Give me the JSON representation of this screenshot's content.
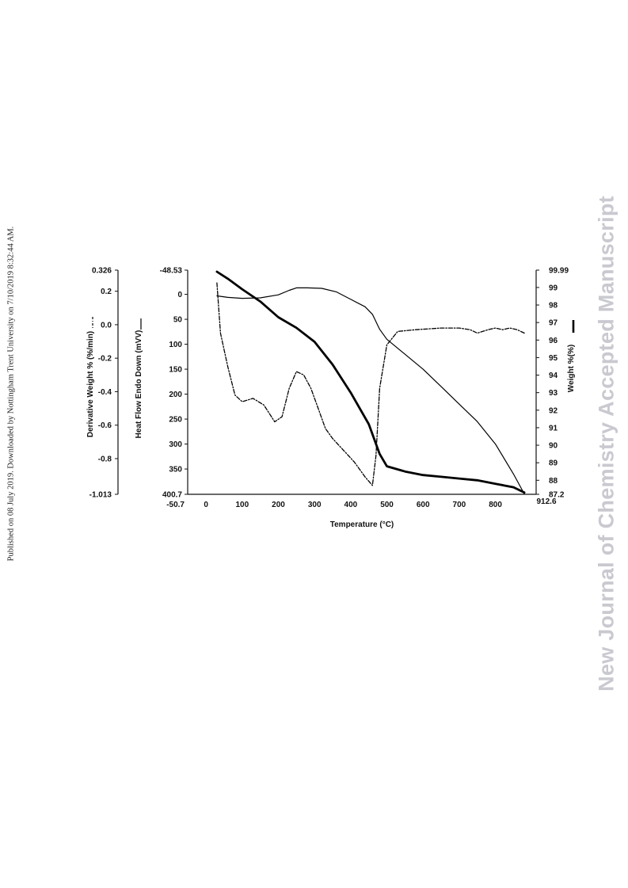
{
  "side_note": "Published on 08 July 2019. Downloaded by Nottingham Trent University on 7/10/2019 8:32:44 AM.",
  "watermark": "New Journal of Chemistry Accepted Manuscript",
  "chart_data": {
    "type": "line",
    "xlabel": "Temperature (°C)",
    "x_ticks": [
      "-50.7",
      "0",
      "100",
      "200",
      "300",
      "400",
      "500",
      "600",
      "700",
      "800",
      "912.6"
    ],
    "xlim": [
      -50.7,
      912.6
    ],
    "axes": {
      "derivative": {
        "label": "Derivative Weight % (%/min)",
        "ticks": [
          "0.326",
          "0.2",
          "0.0",
          "-0.2",
          "-0.4",
          "-0.6",
          "-0.8",
          "-1.013"
        ],
        "range": [
          -1.013,
          0.326
        ]
      },
      "heat_flow": {
        "label": "Heat Flow Endo Down (mVV)",
        "ticks": [
          "-48.53",
          "0",
          "50",
          "100",
          "150",
          "200",
          "250",
          "300",
          "350",
          "400.7"
        ],
        "range": [
          -48.53,
          400.7
        ],
        "inverted": true
      },
      "weight": {
        "label": "Weight %(%)",
        "ticks": [
          "99.99",
          "99",
          "98",
          "97",
          "96",
          "95",
          "94",
          "93",
          "92",
          "91",
          "90",
          "89",
          "88",
          "87.2"
        ],
        "range": [
          87.2,
          99.99
        ]
      }
    },
    "series": [
      {
        "axis": "weight",
        "style": "thick-solid",
        "x": [
          30,
          60,
          100,
          150,
          200,
          250,
          300,
          350,
          400,
          450,
          480,
          500,
          550,
          600,
          650,
          700,
          750,
          800,
          850,
          880
        ],
        "y": [
          99.9,
          99.5,
          98.9,
          98.2,
          97.3,
          96.7,
          95.9,
          94.6,
          93.0,
          91.2,
          89.5,
          88.8,
          88.5,
          88.3,
          88.2,
          88.1,
          88.0,
          87.8,
          87.6,
          87.3
        ]
      },
      {
        "axis": "heat_flow",
        "style": "thin-solid",
        "x": [
          30,
          60,
          100,
          150,
          200,
          230,
          250,
          280,
          320,
          360,
          400,
          440,
          460,
          480,
          500,
          550,
          600,
          650,
          700,
          750,
          800,
          850,
          880
        ],
        "y": [
          3,
          6,
          8,
          7,
          1,
          -8,
          -13,
          -13,
          -12,
          -5,
          10,
          25,
          40,
          70,
          90,
          120,
          150,
          185,
          220,
          255,
          300,
          360,
          400
        ]
      },
      {
        "axis": "derivative",
        "style": "dash-dot",
        "x": [
          30,
          40,
          60,
          80,
          100,
          130,
          160,
          190,
          210,
          230,
          250,
          270,
          290,
          310,
          330,
          350,
          380,
          410,
          440,
          460,
          470,
          480,
          500,
          530,
          580,
          650,
          700,
          730,
          750,
          780,
          800,
          820,
          840,
          860,
          880
        ],
        "y": [
          0.25,
          -0.05,
          -0.25,
          -0.42,
          -0.46,
          -0.44,
          -0.48,
          -0.58,
          -0.55,
          -0.38,
          -0.28,
          -0.3,
          -0.38,
          -0.5,
          -0.62,
          -0.68,
          -0.75,
          -0.82,
          -0.91,
          -0.96,
          -0.78,
          -0.38,
          -0.12,
          -0.04,
          -0.03,
          -0.02,
          -0.02,
          -0.03,
          -0.05,
          -0.03,
          -0.02,
          -0.03,
          -0.02,
          -0.03,
          -0.05
        ]
      }
    ]
  }
}
